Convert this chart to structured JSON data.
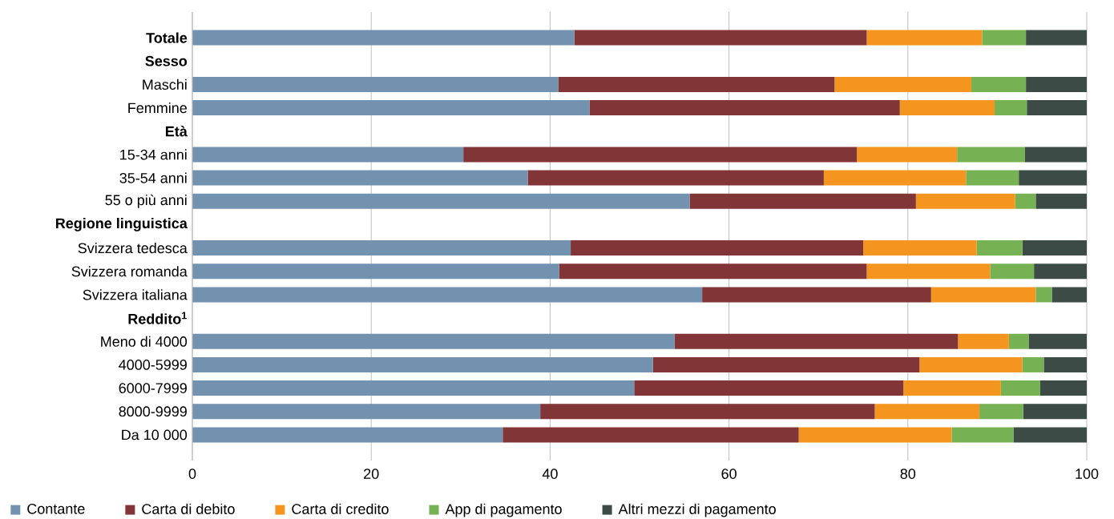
{
  "chart_data": {
    "type": "bar",
    "orientation": "horizontal",
    "stacked": true,
    "categories": [
      "Totale",
      "Sesso",
      "Maschi",
      "Femmine",
      "Età",
      "15-34 anni",
      "35-54 anni",
      "55 o più anni",
      "Regione linguistica",
      "Svizzera tedesca",
      "Svizzera romanda",
      "Svizzera italiana",
      "Reddito$^{1}$",
      "Meno di 4000",
      "4000-5999",
      "6000-7999",
      "8000-9999",
      "Da 10 000"
    ],
    "series": [
      {
        "name": "Contante",
        "color": "#7292b0",
        "values": [
          42.7,
          null,
          40.9,
          44.4,
          null,
          30.3,
          37.5,
          55.6,
          null,
          42.3,
          41.0,
          57.0,
          null,
          53.9,
          51.5,
          49.4,
          38.9,
          34.7
        ]
      },
      {
        "name": "Carta di debito",
        "color": "#813537",
        "values": [
          32.7,
          null,
          30.9,
          34.7,
          null,
          44.0,
          33.1,
          25.3,
          null,
          32.7,
          34.4,
          25.6,
          null,
          31.7,
          29.8,
          30.1,
          37.4,
          33.1
        ]
      },
      {
        "name": "Carta di credito",
        "color": "#f3951f",
        "values": [
          12.9,
          null,
          15.3,
          10.6,
          null,
          11.2,
          15.9,
          11.1,
          null,
          12.7,
          13.8,
          11.7,
          null,
          5.7,
          11.5,
          10.9,
          11.7,
          17.1
        ]
      },
      {
        "name": "App di pagamento",
        "color": "#76b154",
        "values": [
          4.9,
          null,
          6.1,
          3.6,
          null,
          7.6,
          5.9,
          2.3,
          null,
          5.1,
          4.9,
          1.8,
          null,
          2.2,
          2.4,
          4.4,
          4.9,
          6.9
        ]
      },
      {
        "name": "Altri mezzi di pagamento",
        "color": "#3c4b45",
        "values": [
          6.8,
          null,
          6.8,
          6.7,
          null,
          6.9,
          7.6,
          5.7,
          null,
          7.2,
          5.9,
          3.9,
          null,
          6.5,
          4.8,
          5.2,
          7.1,
          8.2
        ]
      }
    ],
    "xlim": [
      0,
      100
    ],
    "xticks": [
      0,
      20,
      40,
      60,
      80,
      100
    ],
    "grid": "x",
    "legend": "bottom"
  }
}
